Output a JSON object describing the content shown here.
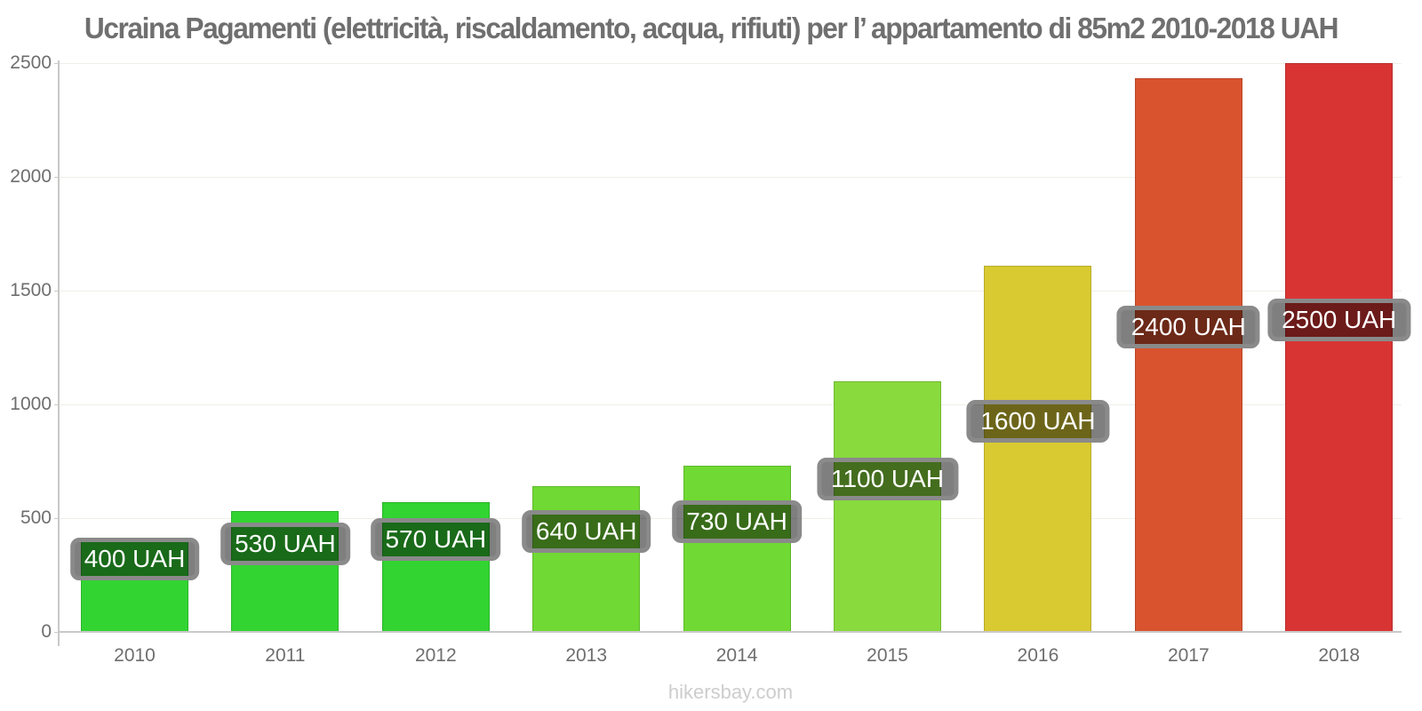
{
  "chart_data": {
    "type": "bar",
    "title": "Ucraina Pagamenti (elettricità, riscaldamento, acqua, rifiuti) per l’ appartamento di 85m2 2010-2018 UAH",
    "unit": "UAH",
    "xlabel": "",
    "ylabel": "",
    "ylim": [
      0,
      2500
    ],
    "yticks": [
      0,
      500,
      1000,
      1500,
      2000,
      2500
    ],
    "grid": true,
    "legend": "none",
    "categories": [
      "2010",
      "2011",
      "2012",
      "2013",
      "2014",
      "2015",
      "2016",
      "2017",
      "2018"
    ],
    "values": [
      400,
      530,
      570,
      640,
      730,
      1100,
      1600,
      2400,
      2500
    ],
    "bars": [
      {
        "year": "2010",
        "value": 400,
        "bar_value": 400,
        "label": "400 UAH",
        "color": "#32d432"
      },
      {
        "year": "2011",
        "value": 530,
        "bar_value": 530,
        "label": "530 UAH",
        "color": "#32d432"
      },
      {
        "year": "2012",
        "value": 570,
        "bar_value": 570,
        "label": "570 UAH",
        "color": "#32d432"
      },
      {
        "year": "2013",
        "value": 640,
        "bar_value": 640,
        "label": "640 UAH",
        "color": "#70d933"
      },
      {
        "year": "2014",
        "value": 730,
        "bar_value": 730,
        "label": "730 UAH",
        "color": "#70d933"
      },
      {
        "year": "2015",
        "value": 1100,
        "bar_value": 1100,
        "label": "1100 UAH",
        "color": "#88da3d"
      },
      {
        "year": "2016",
        "value": 1600,
        "bar_value": 1610,
        "label": "1600 UAH",
        "color": "#d9ca32"
      },
      {
        "year": "2017",
        "value": 2400,
        "bar_value": 2435,
        "label": "2400 UAH",
        "color": "#d9532f"
      },
      {
        "year": "2018",
        "value": 2500,
        "bar_value": 2500,
        "label": "2500 UAH",
        "color": "#d93434"
      }
    ]
  },
  "footer": "hikersbay.com",
  "colors": {
    "title_text": "#6f6f6f",
    "axis_line": "#c9c9c9",
    "tick_text": "#6e6e6e",
    "gridline": "#f0eee8",
    "value_pill_border": "#8a8a8a",
    "value_pill_bg": "rgba(0,0,0,0.5)",
    "value_pill_text": "#ffffff",
    "watermark_text": "#cdcdcd"
  }
}
